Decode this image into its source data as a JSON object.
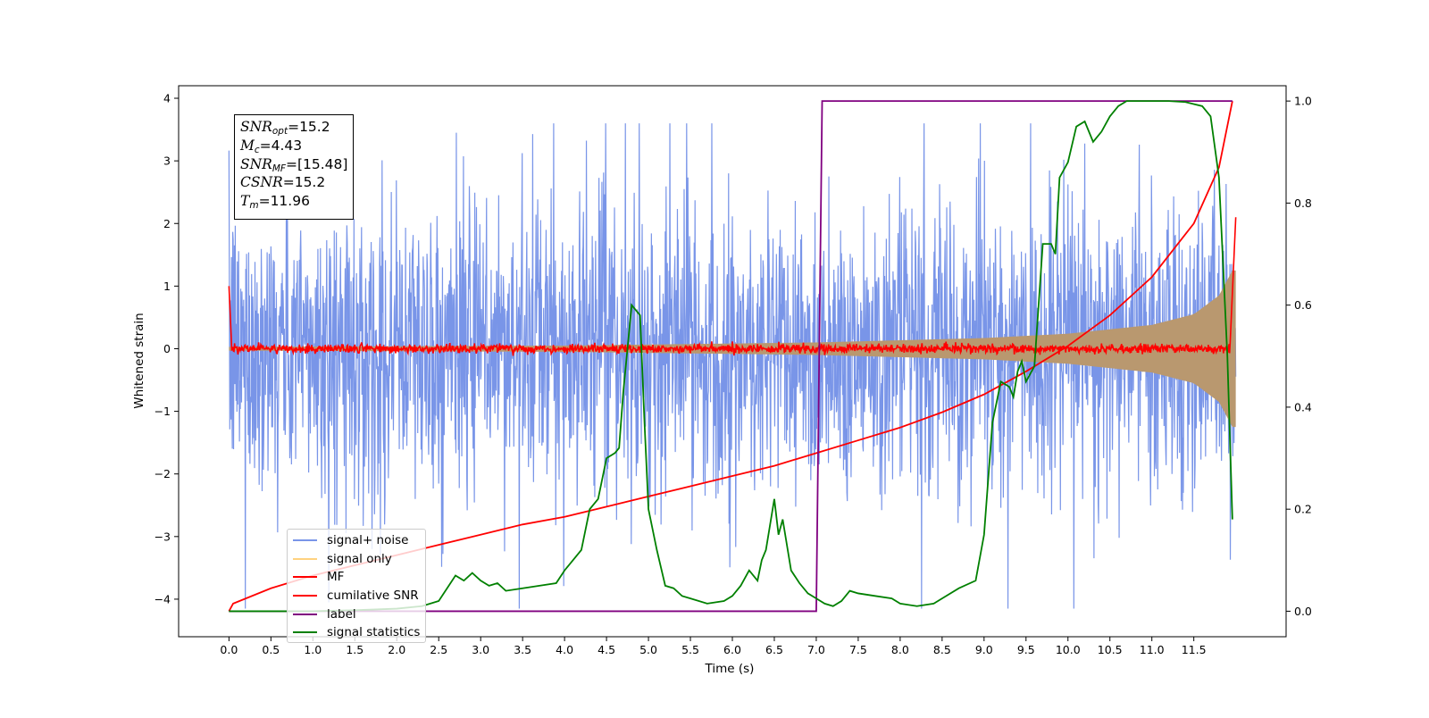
{
  "chart_data": {
    "type": "line",
    "xlabel": "Time (s)",
    "ylabel": "Whitened strain",
    "xlim": [
      -0.6,
      12.6
    ],
    "ylim": [
      -4.6,
      4.2
    ],
    "y2lim": [
      -0.05,
      1.03
    ],
    "x_ticks": [
      "0.0",
      "0.5",
      "1.0",
      "1.5",
      "2.0",
      "2.5",
      "3.0",
      "3.5",
      "4.0",
      "4.5",
      "5.0",
      "5.5",
      "6.0",
      "6.5",
      "7.0",
      "7.5",
      "8.0",
      "8.5",
      "9.0",
      "9.5",
      "10.0",
      "10.5",
      "11.0",
      "11.5"
    ],
    "y_ticks": [
      "−4",
      "−3",
      "−2",
      "−1",
      "0",
      "1",
      "2",
      "3",
      "4"
    ],
    "y_tick_values": [
      -4,
      -3,
      -2,
      -1,
      0,
      1,
      2,
      3,
      4
    ],
    "y2_ticks": [
      "0.0",
      "0.2",
      "0.4",
      "0.6",
      "0.8",
      "1.0"
    ],
    "y2_tick_values": [
      0,
      0.2,
      0.4,
      0.6,
      0.8,
      1.0
    ],
    "info_box": {
      "snr_opt_label": "SNR",
      "snr_opt_sub": "opt",
      "snr_opt_value": "=15.2",
      "mc_label": "M",
      "mc_sub": "c",
      "mc_value": "=4.43",
      "snr_mf_label": "SNR",
      "snr_mf_sub": "MF",
      "snr_mf_value": "=[15.48]",
      "csnr_label": "CSNR",
      "csnr_value": "=15.2",
      "tm_label": "T",
      "tm_sub": "m",
      "tm_value": "=11.96"
    },
    "legend": [
      {
        "name": "signal+ noise",
        "color": "#4169e1"
      },
      {
        "name": "signal only",
        "color": "#ffa500"
      },
      {
        "name": "MF",
        "color": "#ff0000"
      },
      {
        "name": "cumilative SNR",
        "color": "#ff0000"
      },
      {
        "name": "label",
        "color": "#800080"
      },
      {
        "name": "signal statistics",
        "color": "#008000"
      }
    ],
    "series": [
      {
        "name": "signal+ noise",
        "axis": "left",
        "color": "#4169e1",
        "t_range": [
          0,
          12.0
        ],
        "amplitude_typical": 1.2,
        "peak_max": 3.6,
        "peak_min": -4.15
      },
      {
        "name": "signal only",
        "axis": "left",
        "color": "#ffa500",
        "t_range": [
          0,
          12.0
        ],
        "envelope_t": [
          0,
          4,
          7,
          9,
          10,
          11,
          11.5,
          11.8,
          11.96
        ],
        "envelope_y": [
          0.03,
          0.05,
          0.1,
          0.17,
          0.24,
          0.38,
          0.55,
          0.85,
          1.25
        ]
      },
      {
        "name": "MF",
        "axis": "left",
        "color": "#ff0000",
        "t_range": [
          0,
          12.0
        ],
        "noise_amplitude": 0.06
      },
      {
        "name": "cumilative SNR",
        "axis": "right",
        "color": "#ff0000",
        "x": [
          0,
          0.05,
          0.5,
          1,
          1.5,
          2,
          2.5,
          3,
          3.5,
          4,
          4.5,
          5,
          5.5,
          6,
          6.5,
          7,
          7.5,
          8,
          8.5,
          9,
          9.5,
          10,
          10.5,
          11,
          11.5,
          11.8,
          11.96
        ],
        "y": [
          0,
          0.015,
          0.045,
          0.07,
          0.09,
          0.11,
          0.13,
          0.15,
          0.17,
          0.185,
          0.205,
          0.225,
          0.245,
          0.265,
          0.285,
          0.31,
          0.335,
          0.36,
          0.39,
          0.425,
          0.47,
          0.52,
          0.58,
          0.655,
          0.76,
          0.87,
          1.0
        ]
      },
      {
        "name": "label",
        "axis": "right",
        "color": "#800080",
        "x": [
          0,
          7.0,
          7.07,
          11.96
        ],
        "y": [
          0,
          0,
          1,
          1
        ]
      },
      {
        "name": "signal statistics",
        "axis": "right",
        "color": "#008000",
        "x": [
          0,
          0.5,
          1.0,
          1.5,
          2.0,
          2.3,
          2.5,
          2.7,
          2.8,
          2.9,
          3.0,
          3.1,
          3.2,
          3.3,
          3.5,
          3.7,
          3.9,
          4.0,
          4.1,
          4.2,
          4.3,
          4.4,
          4.5,
          4.6,
          4.65,
          4.7,
          4.8,
          4.9,
          4.95,
          5.0,
          5.1,
          5.2,
          5.3,
          5.4,
          5.5,
          5.7,
          5.9,
          6.0,
          6.1,
          6.2,
          6.3,
          6.35,
          6.4,
          6.5,
          6.55,
          6.6,
          6.7,
          6.8,
          6.9,
          7.0,
          7.1,
          7.2,
          7.3,
          7.4,
          7.5,
          7.7,
          7.9,
          8.0,
          8.2,
          8.4,
          8.5,
          8.7,
          8.9,
          9.0,
          9.1,
          9.2,
          9.3,
          9.35,
          9.4,
          9.45,
          9.5,
          9.6,
          9.7,
          9.8,
          9.85,
          9.9,
          10.0,
          10.1,
          10.2,
          10.3,
          10.4,
          10.5,
          10.6,
          10.7,
          10.8,
          10.9,
          11.0,
          11.2,
          11.4,
          11.6,
          11.7,
          11.8,
          11.9,
          11.96
        ],
        "y": [
          0,
          0,
          0,
          0.002,
          0.005,
          0.01,
          0.02,
          0.07,
          0.06,
          0.075,
          0.06,
          0.05,
          0.055,
          0.04,
          0.045,
          0.05,
          0.055,
          0.08,
          0.1,
          0.12,
          0.2,
          0.22,
          0.3,
          0.31,
          0.32,
          0.43,
          0.6,
          0.58,
          0.38,
          0.2,
          0.12,
          0.05,
          0.045,
          0.03,
          0.025,
          0.015,
          0.02,
          0.03,
          0.05,
          0.08,
          0.06,
          0.1,
          0.12,
          0.22,
          0.15,
          0.18,
          0.08,
          0.055,
          0.035,
          0.025,
          0.015,
          0.01,
          0.02,
          0.04,
          0.035,
          0.03,
          0.025,
          0.015,
          0.01,
          0.015,
          0.025,
          0.045,
          0.06,
          0.15,
          0.37,
          0.45,
          0.44,
          0.42,
          0.47,
          0.49,
          0.45,
          0.48,
          0.72,
          0.72,
          0.7,
          0.85,
          0.88,
          0.95,
          0.96,
          0.92,
          0.94,
          0.97,
          0.99,
          1.0,
          1.0,
          1.0,
          1.0,
          1.0,
          0.998,
          0.99,
          0.97,
          0.85,
          0.5,
          0.18
        ]
      }
    ]
  }
}
